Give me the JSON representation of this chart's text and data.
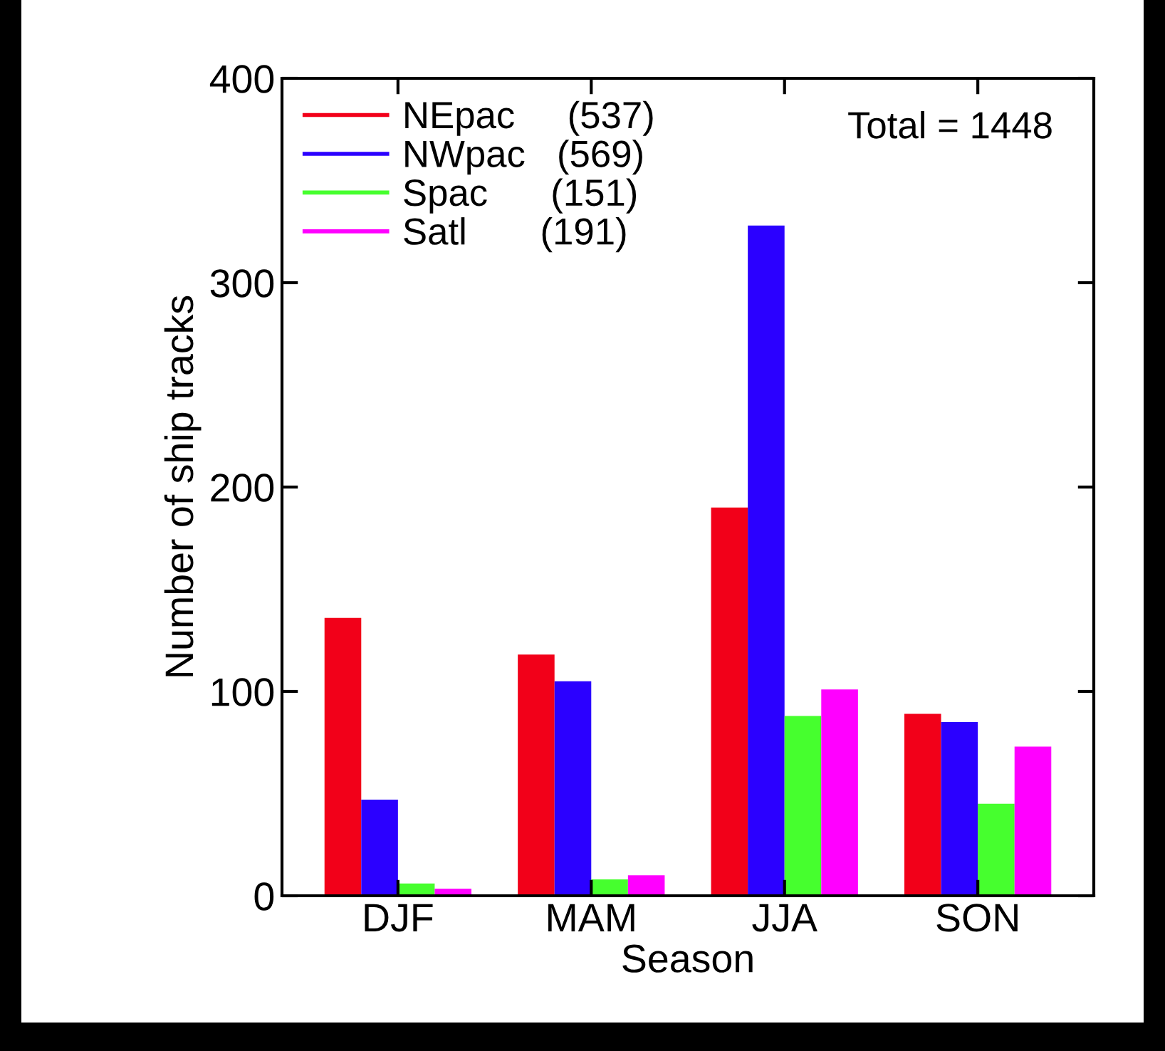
{
  "chart_data": {
    "type": "bar",
    "xlabel": "Season",
    "ylabel": "Number of ship tracks",
    "categories": [
      "DJF",
      "MAM",
      "JJA",
      "SON"
    ],
    "series": [
      {
        "name": "NEpac     (537)",
        "color": "#f20019",
        "values": [
          136,
          118,
          190,
          89
        ]
      },
      {
        "name": "NWpac   (569)",
        "color": "#2b00ff",
        "values": [
          47,
          105,
          328,
          85
        ]
      },
      {
        "name": "Spac      (151)",
        "color": "#46ff2e",
        "values": [
          6,
          8,
          88,
          45
        ]
      },
      {
        "name": "Satl       (191)",
        "color": "#ff00ff",
        "values": [
          3.5,
          10,
          101,
          73
        ]
      }
    ],
    "annotations": [
      "Total = 1448"
    ],
    "ylim": [
      0,
      400
    ],
    "yticks": [
      0,
      100,
      200,
      300,
      400
    ],
    "grid": false,
    "legend": "top left"
  }
}
